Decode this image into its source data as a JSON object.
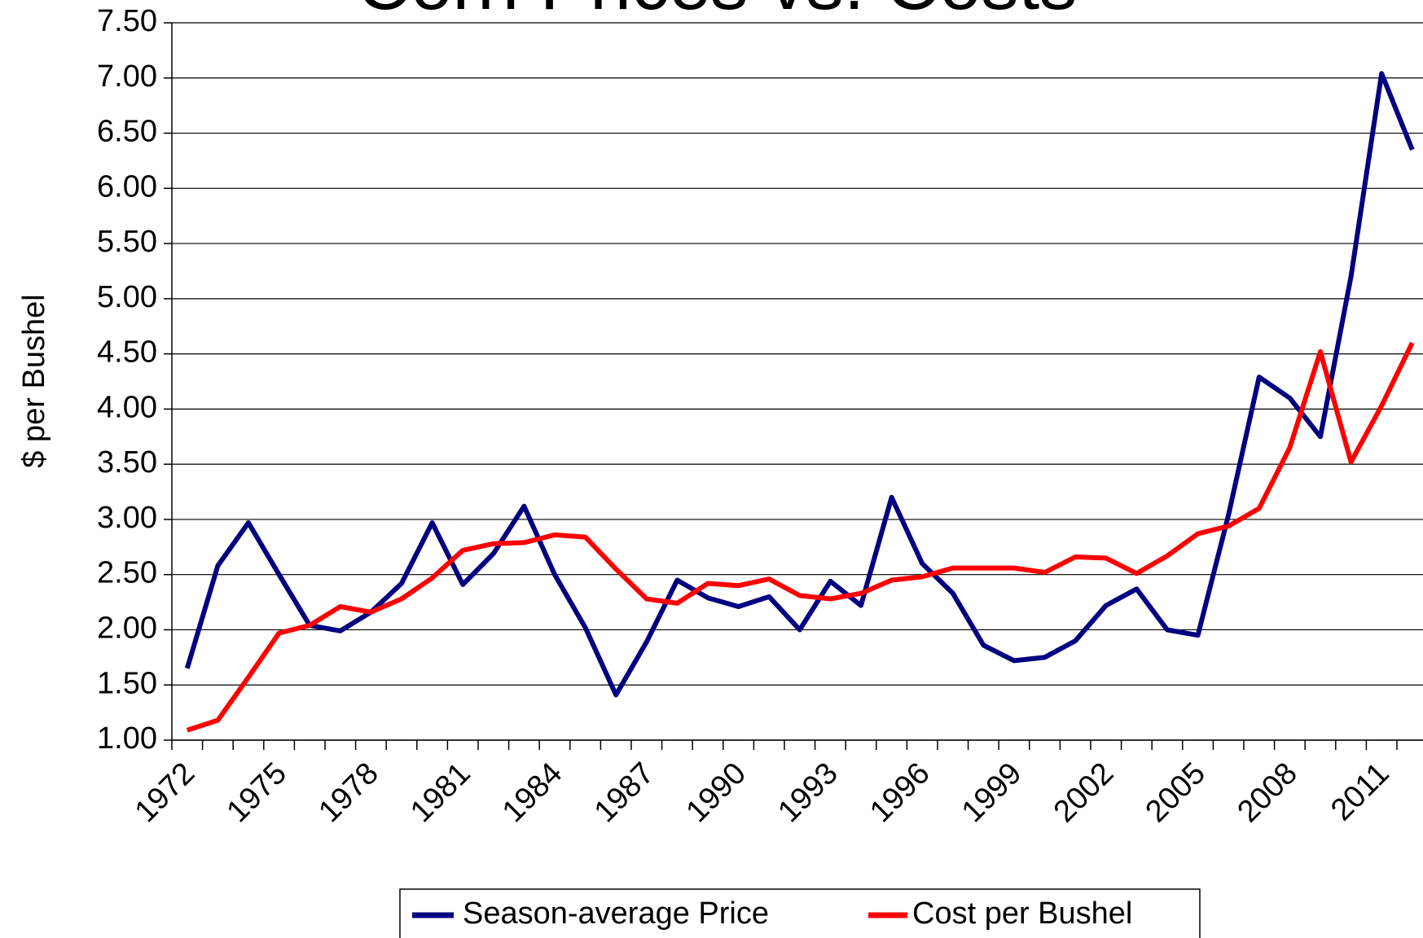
{
  "chart_data": {
    "type": "line",
    "title": "Corn Prices vs. Costs",
    "y_label": "$ per Bushel",
    "categories": [
      "1972",
      null,
      null,
      "1975",
      null,
      null,
      "1978",
      null,
      null,
      "1981",
      null,
      null,
      "1984",
      null,
      null,
      "1987",
      null,
      null,
      "1990",
      null,
      null,
      "1993",
      null,
      null,
      "1996",
      null,
      null,
      "1999",
      null,
      null,
      "2002",
      null,
      null,
      "2005",
      null,
      null,
      "2008",
      null,
      null,
      "2011",
      null
    ],
    "series": [
      {
        "name": "Season-average Price",
        "color": "#000080",
        "values": [
          1.65,
          2.58,
          2.97,
          2.5,
          2.04,
          1.99,
          2.16,
          2.42,
          2.97,
          2.41,
          2.69,
          3.12,
          2.5,
          2.02,
          1.41,
          1.89,
          2.45,
          2.29,
          2.21,
          2.3,
          2.0,
          2.44,
          2.22,
          3.2,
          2.6,
          2.33,
          1.86,
          1.72,
          1.75,
          1.9,
          2.22,
          2.37,
          2.0,
          1.95,
          3.04,
          4.29,
          4.1,
          3.75,
          5.2,
          7.04,
          6.35
        ]
      },
      {
        "name": "Cost per Bushel",
        "color": "#ff0000",
        "values": [
          1.09,
          1.18,
          1.57,
          1.97,
          2.04,
          2.21,
          2.16,
          2.28,
          2.47,
          2.72,
          2.78,
          2.79,
          2.86,
          2.84,
          2.55,
          2.28,
          2.24,
          2.42,
          2.4,
          2.46,
          2.31,
          2.28,
          2.33,
          2.45,
          2.48,
          2.56,
          2.56,
          2.56,
          2.52,
          2.66,
          2.65,
          2.51,
          2.67,
          2.87,
          2.94,
          3.1,
          3.65,
          4.52,
          3.52,
          4.03,
          4.6
        ]
      }
    ],
    "ylim": [
      1,
      7.5
    ],
    "yticks": [
      {
        "value": 1,
        "label": "1.00"
      },
      {
        "value": 1.5,
        "label": "1.50"
      },
      {
        "value": 2,
        "label": "2.00"
      },
      {
        "value": 2.5,
        "label": "2.50"
      },
      {
        "value": 3,
        "label": "3.00"
      },
      {
        "value": 3.5,
        "label": "3.50"
      },
      {
        "value": 4,
        "label": "4.00"
      },
      {
        "value": 4.5,
        "label": "4.50"
      },
      {
        "value": 5,
        "label": "5.00"
      },
      {
        "value": 5.5,
        "label": "5.50"
      },
      {
        "value": 6,
        "label": "6.00"
      },
      {
        "value": 6.5,
        "label": "6.50"
      },
      {
        "value": 7,
        "label": "7.00"
      },
      {
        "value": 7.5,
        "label": "7.50"
      }
    ],
    "grid": true,
    "legend": "bottom"
  }
}
